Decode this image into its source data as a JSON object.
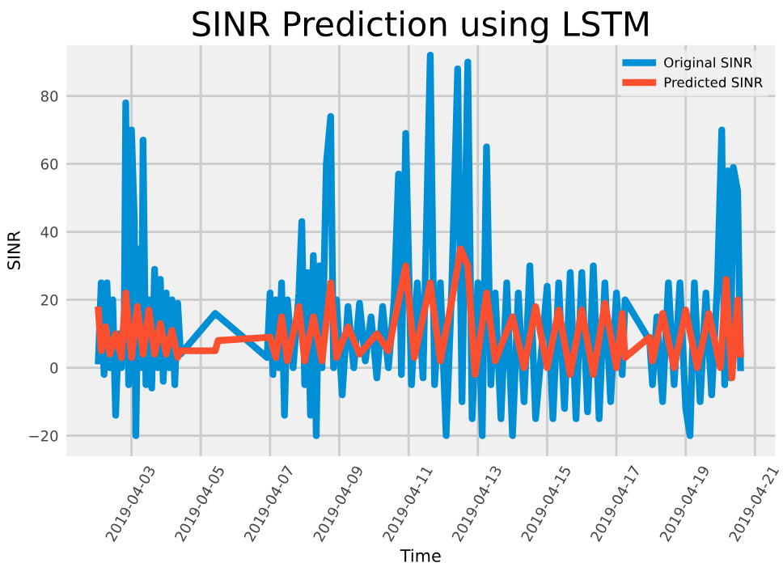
{
  "chart_data": {
    "type": "line",
    "title": "SINR Prediction using LSTM",
    "xlabel": "Time",
    "ylabel": "SINR",
    "legend": "top right",
    "grid": true,
    "xlim": [
      "2019-04-01T03:00",
      "2019-04-21T14:00"
    ],
    "ylim": [
      -26,
      95
    ],
    "xticks": [
      "2019-04-03",
      "2019-04-05",
      "2019-04-07",
      "2019-04-09",
      "2019-04-11",
      "2019-04-13",
      "2019-04-15",
      "2019-04-17",
      "2019-04-19",
      "2019-04-21"
    ],
    "yticks": [
      -20,
      0,
      20,
      40,
      60,
      80
    ],
    "series": [
      {
        "name": "Original SINR",
        "color": "#008fd5",
        "x": [
          "2019-04-02T01:00",
          "2019-04-02T03:00",
          "2019-04-02T05:00",
          "2019-04-02T07:00",
          "2019-04-02T09:00",
          "2019-04-02T11:00",
          "2019-04-02T13:00",
          "2019-04-02T15:00",
          "2019-04-02T17:00",
          "2019-04-02T19:00",
          "2019-04-02T20:00",
          "2019-04-02T22:00",
          "2019-04-03T00:00",
          "2019-04-03T02:00",
          "2019-04-03T03:00",
          "2019-04-03T05:00",
          "2019-04-03T07:00",
          "2019-04-03T08:00",
          "2019-04-03T10:00",
          "2019-04-03T12:00",
          "2019-04-03T14:00",
          "2019-04-03T16:00",
          "2019-04-03T18:00",
          "2019-04-03T20:00",
          "2019-04-03T22:00",
          "2019-04-04T00:00",
          "2019-04-04T02:00",
          "2019-04-04T04:00",
          "2019-04-04T06:00",
          "2019-04-04T08:00",
          "2019-04-04T10:00",
          "2019-04-05T10:00",
          "2019-04-06T22:00",
          "2019-04-07T00:00",
          "2019-04-07T02:00",
          "2019-04-07T04:00",
          "2019-04-07T06:00",
          "2019-04-07T08:00",
          "2019-04-07T10:00",
          "2019-04-07T12:00",
          "2019-04-07T16:00",
          "2019-04-07T20:00",
          "2019-04-07T22:00",
          "2019-04-08T00:00",
          "2019-04-08T02:00",
          "2019-04-08T04:00",
          "2019-04-08T06:00",
          "2019-04-08T08:00",
          "2019-04-08T10:00",
          "2019-04-08T12:00",
          "2019-04-08T15:00",
          "2019-04-08T18:00",
          "2019-04-08T20:00",
          "2019-04-08T22:00",
          "2019-04-09T02:00",
          "2019-04-09T06:00",
          "2019-04-09T10:00",
          "2019-04-09T14:00",
          "2019-04-09T18:00",
          "2019-04-09T22:00",
          "2019-04-10T02:00",
          "2019-04-10T06:00",
          "2019-04-10T10:00",
          "2019-04-10T14:00",
          "2019-04-10T17:00",
          "2019-04-10T19:00",
          "2019-04-10T22:00",
          "2019-04-11T02:00",
          "2019-04-11T06:00",
          "2019-04-11T10:00",
          "2019-04-11T15:00",
          "2019-04-11T18:00",
          "2019-04-11T22:00",
          "2019-04-12T02:00",
          "2019-04-12T06:00",
          "2019-04-12T10:00",
          "2019-04-12T13:00",
          "2019-04-12T17:00",
          "2019-04-12T20:00",
          "2019-04-13T00:00",
          "2019-04-13T03:00",
          "2019-04-13T06:00",
          "2019-04-13T09:00",
          "2019-04-13T12:00",
          "2019-04-13T16:00",
          "2019-04-13T20:00",
          "2019-04-14T00:00",
          "2019-04-14T04:00",
          "2019-04-14T08:00",
          "2019-04-14T12:00",
          "2019-04-14T16:00",
          "2019-04-15T00:00",
          "2019-04-15T04:00",
          "2019-04-15T08:00",
          "2019-04-15T12:00",
          "2019-04-15T16:00",
          "2019-04-15T20:00",
          "2019-04-16T00:00",
          "2019-04-16T04:00",
          "2019-04-16T08:00",
          "2019-04-16T12:00",
          "2019-04-16T16:00",
          "2019-04-16T20:00",
          "2019-04-17T00:00",
          "2019-04-17T04:00",
          "2019-04-17T06:00",
          "2019-04-17T23:00",
          "2019-04-18T01:00",
          "2019-04-18T04:00",
          "2019-04-18T08:00",
          "2019-04-18T12:00",
          "2019-04-18T16:00",
          "2019-04-18T20:00",
          "2019-04-19T00:00",
          "2019-04-19T03:00",
          "2019-04-19T06:00",
          "2019-04-19T10:00",
          "2019-04-19T14:00",
          "2019-04-19T18:00",
          "2019-04-19T22:00",
          "2019-04-20T01:00",
          "2019-04-20T03:00",
          "2019-04-20T05:00",
          "2019-04-20T07:00",
          "2019-04-20T09:00",
          "2019-04-20T12:00",
          "2019-04-20T14:00"
        ],
        "values": [
          2,
          25,
          -2,
          25,
          0,
          20,
          -14,
          10,
          0,
          15,
          78,
          -5,
          70,
          43,
          -20,
          35,
          0,
          67,
          -5,
          20,
          -6,
          29,
          0,
          26,
          -4,
          22,
          0,
          20,
          -5,
          19,
          4,
          16,
          3,
          22,
          -2,
          20,
          0,
          25,
          -14,
          20,
          0,
          22,
          43,
          -5,
          28,
          -14,
          33,
          -20,
          30,
          0,
          60,
          74,
          0,
          20,
          -8,
          18,
          0,
          19,
          2,
          15,
          -3,
          18,
          0,
          20,
          57,
          -2,
          69,
          -5,
          25,
          -3,
          92,
          -5,
          25,
          -20,
          25,
          88,
          -10,
          90,
          -15,
          25,
          -20,
          65,
          -5,
          22,
          -15,
          25,
          -20,
          22,
          -10,
          30,
          -15,
          24,
          -15,
          25,
          -12,
          28,
          -15,
          28,
          -13,
          30,
          -15,
          25,
          -10,
          22,
          -2,
          20,
          8,
          -5,
          15,
          -10,
          25,
          -5,
          25,
          -12,
          -20,
          25,
          -10,
          22,
          -8,
          25,
          70,
          -5,
          58,
          -3,
          59,
          52,
          0
        ]
      },
      {
        "name": "Predicted SINR",
        "color": "#fc4f30",
        "x": [
          "2019-04-02T01:00",
          "2019-04-02T03:00",
          "2019-04-02T06:00",
          "2019-04-02T09:00",
          "2019-04-02T13:00",
          "2019-04-02T17:00",
          "2019-04-02T20:00",
          "2019-04-03T00:00",
          "2019-04-03T04:00",
          "2019-04-03T08:00",
          "2019-04-03T12:00",
          "2019-04-03T16:00",
          "2019-04-03T20:00",
          "2019-04-04T00:00",
          "2019-04-04T04:00",
          "2019-04-04T08:00",
          "2019-04-04T10:00",
          "2019-04-05T10:00",
          "2019-04-05T12:00",
          "2019-04-07T00:00",
          "2019-04-07T04:00",
          "2019-04-07T08:00",
          "2019-04-07T12:00",
          "2019-04-07T20:00",
          "2019-04-08T00:00",
          "2019-04-08T06:00",
          "2019-04-08T12:00",
          "2019-04-08T18:00",
          "2019-04-08T22:00",
          "2019-04-09T06:00",
          "2019-04-09T14:00",
          "2019-04-10T02:00",
          "2019-04-10T10:00",
          "2019-04-10T22:00",
          "2019-04-11T04:00",
          "2019-04-11T15:00",
          "2019-04-11T22:00",
          "2019-04-12T06:00",
          "2019-04-12T12:00",
          "2019-04-12T17:00",
          "2019-04-12T22:00",
          "2019-04-13T06:00",
          "2019-04-13T12:00",
          "2019-04-14T00:00",
          "2019-04-14T08:00",
          "2019-04-14T16:00",
          "2019-04-15T00:00",
          "2019-04-15T08:00",
          "2019-04-15T16:00",
          "2019-04-16T00:00",
          "2019-04-16T08:00",
          "2019-04-16T16:00",
          "2019-04-17T00:00",
          "2019-04-17T04:00",
          "2019-04-17T06:00",
          "2019-04-17T23:00",
          "2019-04-18T01:00",
          "2019-04-18T08:00",
          "2019-04-18T16:00",
          "2019-04-19T00:00",
          "2019-04-19T08:00",
          "2019-04-19T16:00",
          "2019-04-20T00:00",
          "2019-04-20T04:00",
          "2019-04-20T08:00",
          "2019-04-20T12:00",
          "2019-04-20T14:00"
        ],
        "values": [
          17,
          5,
          12,
          4,
          10,
          3,
          22,
          3,
          18,
          4,
          17,
          4,
          13,
          4,
          11,
          3,
          5,
          5,
          8,
          9,
          3,
          15,
          2,
          18,
          2,
          15,
          2,
          25,
          3,
          12,
          4,
          10,
          5,
          30,
          3,
          25,
          2,
          20,
          35,
          30,
          -2,
          22,
          2,
          15,
          0,
          18,
          0,
          17,
          -2,
          17,
          -2,
          19,
          0,
          16,
          3,
          9,
          2,
          16,
          0,
          17,
          0,
          16,
          0,
          26,
          -3,
          20,
          4
        ]
      }
    ]
  }
}
